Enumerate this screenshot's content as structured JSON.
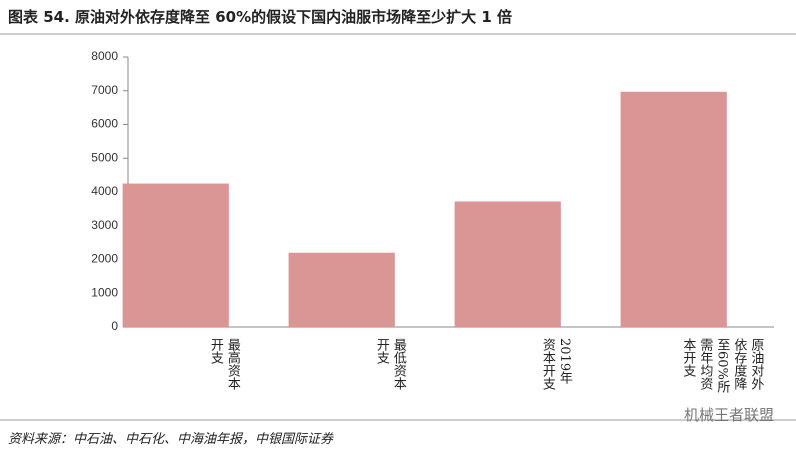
{
  "chart_data": {
    "type": "bar",
    "title": "图表 54. 原油对外依存度降至 60%的假设下国内油服市场降至少扩大 1 倍",
    "categories": [
      "最高资本开支",
      "最低资本开支",
      "2019年资本开支",
      "原油对外依存度降至60%所需年均资本开支"
    ],
    "values": [
      4250,
      2200,
      3720,
      6970
    ],
    "color": "#d99694",
    "ylim": [
      0,
      8000
    ],
    "yticks": [
      0,
      1000,
      2000,
      3000,
      4000,
      5000,
      6000,
      7000,
      8000
    ],
    "grid": false,
    "source": "资料来源：中石油、中石化、中海油年报，中银国际证券",
    "watermark": "机械王者联盟"
  }
}
